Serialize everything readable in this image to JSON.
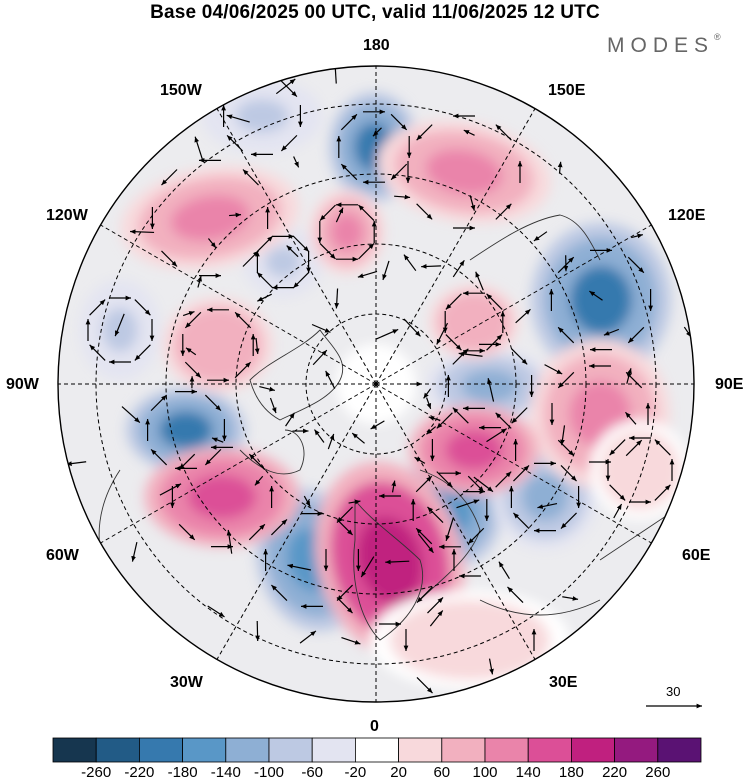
{
  "title": "Base 04/06/2025 00 UTC, valid 11/06/2025 12 UTC",
  "logo": {
    "text": "MODES",
    "mark": "®"
  },
  "longitude_labels": {
    "top": "180",
    "bottom": "0",
    "left": "90W",
    "right": "90E",
    "upper_left_1": "150W",
    "upper_left_2": "120W",
    "upper_right_1": "150E",
    "upper_right_2": "120E",
    "lower_left_1": "60W",
    "lower_left_2": "30W",
    "lower_right_1": "60E",
    "lower_right_2": "30E"
  },
  "reference_vector": {
    "label": "30"
  },
  "colorbar": {
    "colors": [
      "#16364f",
      "#225b86",
      "#3679ae",
      "#5997c7",
      "#8eafd4",
      "#bdc9e3",
      "#e3e4f1",
      "#ffffff",
      "#f8d9dc",
      "#f2b0bf",
      "#ea84aa",
      "#dc4f97",
      "#c0207f",
      "#941a7f",
      "#5a1273"
    ],
    "labels": [
      "-260",
      "-220",
      "-180",
      "-140",
      "-100",
      "-60",
      "-20",
      "20",
      "60",
      "100",
      "140",
      "180",
      "220",
      "260"
    ]
  }
}
